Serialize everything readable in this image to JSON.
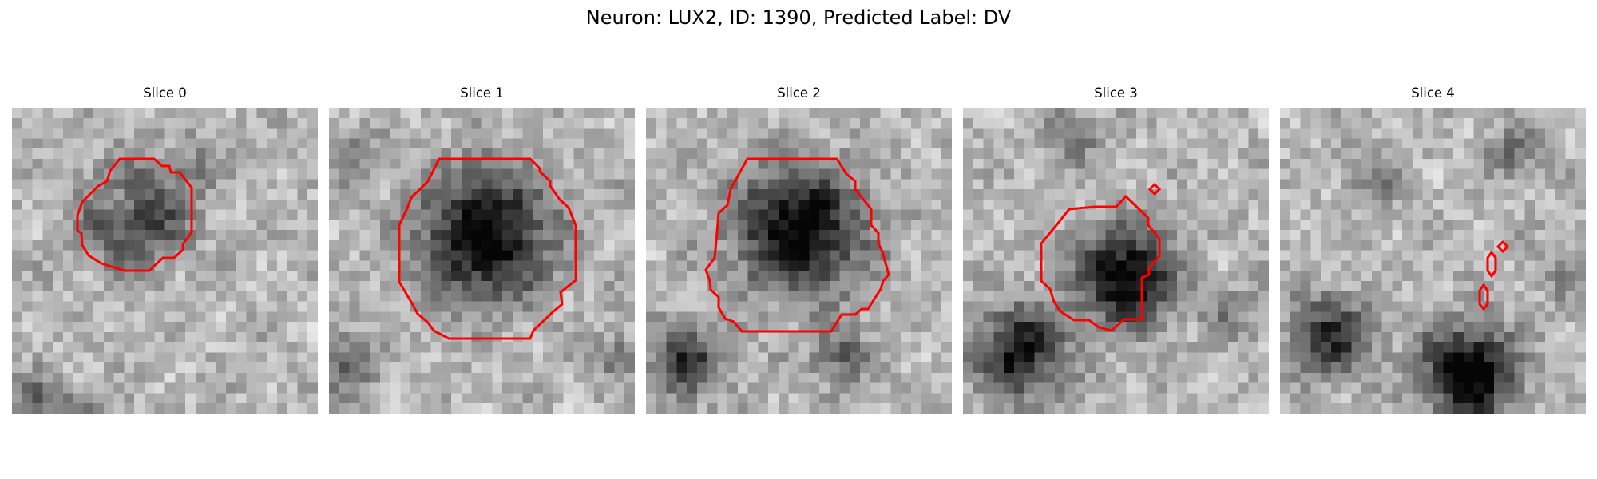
{
  "figure": {
    "title": "Neuron: LUX2, ID: 1390, Predicted Label: DV",
    "contour_color": "#ff0000",
    "colormap": "gray"
  },
  "slices": [
    {
      "title": "Slice 0"
    },
    {
      "title": "Slice 1"
    },
    {
      "title": "Slice 2"
    },
    {
      "title": "Slice 3"
    },
    {
      "title": "Slice 4"
    }
  ]
}
